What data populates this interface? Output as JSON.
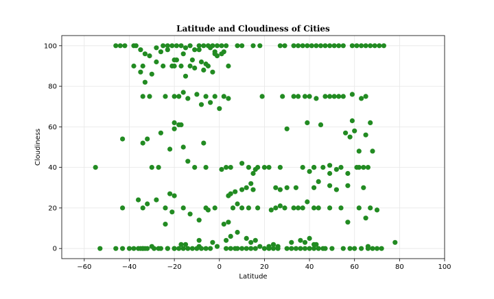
{
  "chart_data": {
    "type": "scatter",
    "title": "Latitude and Cloudiness of Cities",
    "xlabel": "Latitude",
    "ylabel": "Cloudiness",
    "xlim": [
      -70,
      100
    ],
    "ylim": [
      -5,
      105
    ],
    "xticks": [
      -60,
      -40,
      -20,
      0,
      20,
      40,
      60,
      80,
      100
    ],
    "yticks": [
      0,
      20,
      40,
      60,
      80,
      100
    ],
    "grid": true,
    "marker_color": "#228b22",
    "x": [
      -46,
      -44,
      -42,
      -38,
      -37,
      -35,
      -33,
      -31,
      -28,
      -25,
      -23,
      -21,
      -19,
      -17,
      -15,
      -13,
      -11,
      -9,
      -7,
      -5,
      -3,
      -1,
      1,
      3,
      8,
      10,
      15,
      18,
      27,
      29,
      33,
      35,
      37,
      39,
      41,
      43,
      45,
      47,
      49,
      51,
      53,
      55,
      59,
      61,
      63,
      65,
      67,
      69,
      71,
      73,
      -38,
      -35,
      -34,
      -33,
      -28,
      -25,
      -23,
      -21,
      -20,
      -19,
      -17,
      -15,
      -13,
      -11,
      -9,
      -7,
      -5,
      -3,
      -2,
      -1,
      1,
      2,
      4,
      -30,
      -26,
      -20,
      -16,
      -12,
      -8,
      -6,
      -4,
      -2,
      -34,
      -31,
      -24,
      -20,
      -18,
      -16,
      -14,
      -10,
      -8,
      -6,
      -4,
      -2,
      0,
      2,
      4,
      19,
      28,
      33,
      35,
      38,
      40,
      43,
      47,
      49,
      51,
      53,
      55,
      59,
      63,
      65,
      -34,
      -30,
      -27,
      -22,
      -20,
      -18,
      -16,
      -11,
      -7,
      5,
      13,
      15,
      17,
      20,
      22,
      27,
      30,
      37,
      40,
      42,
      46,
      49,
      56,
      58,
      60,
      61,
      62,
      64,
      66,
      68,
      -32,
      -26,
      -20,
      -17,
      -14,
      -6,
      1,
      3,
      10,
      16,
      39,
      42,
      45,
      49,
      52,
      57,
      59,
      62,
      65,
      67,
      -55,
      -43,
      -36,
      -34,
      -32,
      -28,
      -24,
      -24,
      -21,
      -16,
      -13,
      -9,
      -6,
      -5,
      2,
      4,
      6,
      8,
      10,
      13,
      17,
      23,
      25,
      27,
      29,
      33,
      35,
      37,
      39,
      42,
      44,
      49,
      54,
      57,
      62,
      65,
      67,
      70,
      -22,
      -20,
      -15,
      -9,
      -2,
      4,
      5,
      7,
      10,
      12,
      14,
      15,
      25,
      27,
      30,
      34,
      42,
      44,
      49,
      52,
      54,
      57,
      64,
      -43,
      -35,
      -34,
      -33,
      -30,
      -27,
      -23,
      -20,
      -17,
      -9,
      -3,
      -1,
      3,
      5,
      8,
      12,
      14,
      16,
      18,
      20,
      22,
      24,
      26,
      32,
      36,
      38,
      40,
      42,
      43,
      46,
      66,
      68,
      70,
      -53,
      -46,
      -43,
      -40,
      -38,
      -36,
      -34,
      -32,
      -29,
      -26,
      -23,
      -20,
      -18,
      -16,
      -14,
      -12,
      -10,
      -8,
      -6,
      -4,
      3,
      5,
      7,
      8,
      10,
      12,
      14,
      16,
      22,
      24,
      26,
      30,
      32,
      34,
      36,
      38,
      40,
      42,
      44,
      47,
      50,
      55,
      58,
      60,
      63,
      66,
      72,
      78
    ],
    "y": [
      100,
      100,
      100,
      100,
      100,
      98,
      96,
      95,
      99,
      100,
      100,
      100,
      100,
      100,
      99,
      100,
      98,
      100,
      100,
      100,
      100,
      100,
      100,
      100,
      100,
      100,
      100,
      100,
      100,
      100,
      100,
      100,
      100,
      100,
      100,
      100,
      100,
      100,
      100,
      100,
      100,
      100,
      100,
      100,
      100,
      100,
      100,
      100,
      100,
      100,
      90,
      87,
      90,
      82,
      92,
      90,
      98,
      90,
      90,
      93,
      90,
      85,
      90,
      89,
      98,
      88,
      90,
      87,
      96,
      95,
      96,
      97,
      90,
      86,
      97,
      93,
      96,
      93,
      92,
      91,
      99,
      97,
      75,
      75,
      75,
      75,
      75,
      77,
      74,
      76,
      71,
      75,
      72,
      75,
      69,
      75,
      74,
      75,
      75,
      75,
      75,
      75,
      75,
      74,
      75,
      75,
      75,
      75,
      75,
      76,
      74,
      75,
      52,
      40,
      40,
      49,
      62,
      61,
      50,
      40,
      52,
      40,
      40,
      37,
      40,
      40,
      40,
      40,
      59,
      40,
      38,
      40,
      40,
      37,
      57,
      55,
      58,
      40,
      40,
      40,
      40,
      48,
      54,
      57,
      59,
      61,
      43,
      40,
      39,
      40,
      42,
      39,
      62,
      40,
      61,
      41,
      39,
      37,
      63,
      48,
      56,
      62,
      40,
      54,
      24,
      20,
      22,
      24,
      20,
      12,
      18,
      20,
      17,
      14,
      20,
      19,
      12,
      13,
      20,
      22,
      20,
      20,
      20,
      19,
      20,
      21,
      20,
      20,
      20,
      20,
      23,
      20,
      20,
      20,
      20,
      13,
      20,
      15,
      20,
      19,
      27,
      26,
      2,
      4,
      20,
      26,
      27,
      28,
      29,
      30,
      32,
      29,
      30,
      29,
      30,
      30,
      30,
      33,
      31,
      29,
      40,
      31,
      30,
      20,
      0,
      0,
      0,
      1,
      0,
      0,
      0,
      2,
      1,
      3,
      1,
      4,
      6,
      8,
      5,
      3,
      4,
      1,
      0,
      1,
      2,
      1,
      3,
      4,
      3,
      5,
      2,
      2,
      0,
      1,
      0,
      0,
      0,
      0,
      0,
      0,
      0,
      0,
      0,
      0,
      0,
      0,
      0,
      0,
      0,
      0,
      0,
      0,
      0,
      0,
      0,
      0,
      0,
      0,
      0,
      0,
      0,
      0,
      0,
      0,
      0,
      0,
      0,
      0,
      0,
      0,
      0,
      0,
      0,
      0,
      0,
      0,
      0,
      0,
      0,
      0,
      0,
      0,
      0,
      3
    ]
  }
}
